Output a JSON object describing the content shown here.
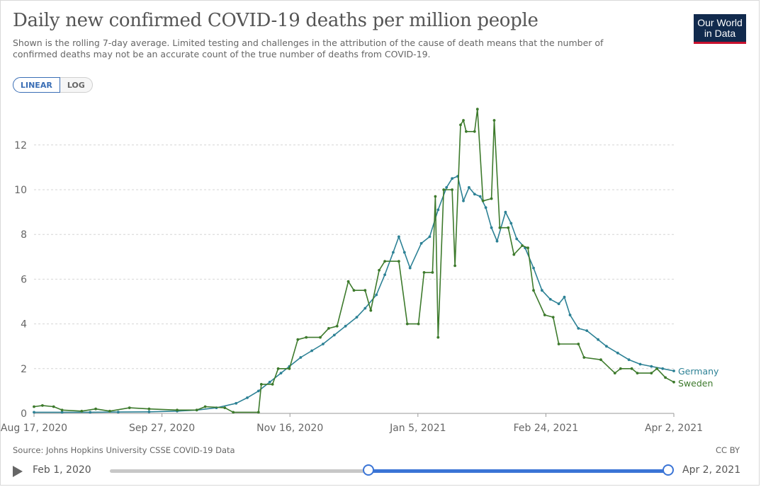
{
  "header": {
    "title": "Daily new confirmed COVID-19 deaths per million people",
    "subtitle": "Shown is the rolling 7-day average. Limited testing and challenges in the attribution of the cause of death means that the number of confirmed deaths may not be an accurate count of the true number of deaths from COVID-19.",
    "logo_line1": "Our World",
    "logo_line2": "in Data"
  },
  "scale_toggle": {
    "linear": "LINEAR",
    "log": "LOG",
    "selected": "LINEAR"
  },
  "footer": {
    "source": "Source: Johns Hopkins University CSSE COVID-19 Data",
    "license": "CC BY"
  },
  "timeline": {
    "start_label": "Feb 1, 2020",
    "end_label": "Apr 2, 2021"
  },
  "chart_data": {
    "type": "line",
    "x_ticks": [
      "Aug 17, 2020",
      "Sep 27, 2020",
      "Nov 16, 2020",
      "Jan 5, 2021",
      "Feb 24, 2021",
      "Apr 2, 2021"
    ],
    "y_ticks": [
      "0",
      "2",
      "4",
      "6",
      "8",
      "10",
      "12"
    ],
    "ylim": [
      0,
      13.7
    ],
    "x_domain": [
      "2020-08-17",
      "2021-04-02"
    ],
    "grid": "horizontal dotted",
    "series": [
      {
        "name": "Germany",
        "color": "#2c8195",
        "points": [
          [
            "2020-08-17",
            0.05
          ],
          [
            "2020-08-27",
            0.05
          ],
          [
            "2020-09-06",
            0.05
          ],
          [
            "2020-09-16",
            0.06
          ],
          [
            "2020-09-27",
            0.07
          ],
          [
            "2020-10-07",
            0.1
          ],
          [
            "2020-10-14",
            0.15
          ],
          [
            "2020-10-21",
            0.25
          ],
          [
            "2020-10-28",
            0.45
          ],
          [
            "2020-11-01",
            0.7
          ],
          [
            "2020-11-05",
            1.0
          ],
          [
            "2020-11-09",
            1.4
          ],
          [
            "2020-11-13",
            1.8
          ],
          [
            "2020-11-16",
            2.1
          ],
          [
            "2020-11-20",
            2.5
          ],
          [
            "2020-11-24",
            2.8
          ],
          [
            "2020-11-28",
            3.1
          ],
          [
            "2020-12-02",
            3.5
          ],
          [
            "2020-12-06",
            3.9
          ],
          [
            "2020-12-10",
            4.3
          ],
          [
            "2020-12-13",
            4.7
          ],
          [
            "2020-12-17",
            5.3
          ],
          [
            "2020-12-20",
            6.2
          ],
          [
            "2020-12-23",
            7.2
          ],
          [
            "2020-12-25",
            7.9
          ],
          [
            "2020-12-27",
            7.2
          ],
          [
            "2020-12-29",
            6.5
          ],
          [
            "2021-01-02",
            7.6
          ],
          [
            "2021-01-05",
            7.9
          ],
          [
            "2021-01-08",
            9.1
          ],
          [
            "2021-01-11",
            10.1
          ],
          [
            "2021-01-13",
            10.5
          ],
          [
            "2021-01-15",
            10.6
          ],
          [
            "2021-01-17",
            9.5
          ],
          [
            "2021-01-19",
            10.1
          ],
          [
            "2021-01-21",
            9.8
          ],
          [
            "2021-01-23",
            9.7
          ],
          [
            "2021-01-25",
            9.2
          ],
          [
            "2021-01-27",
            8.3
          ],
          [
            "2021-01-29",
            7.7
          ],
          [
            "2021-02-01",
            9.0
          ],
          [
            "2021-02-03",
            8.5
          ],
          [
            "2021-02-05",
            7.8
          ],
          [
            "2021-02-08",
            7.4
          ],
          [
            "2021-02-11",
            6.5
          ],
          [
            "2021-02-14",
            5.5
          ],
          [
            "2021-02-17",
            5.1
          ],
          [
            "2021-02-20",
            4.9
          ],
          [
            "2021-02-22",
            5.2
          ],
          [
            "2021-02-24",
            4.4
          ],
          [
            "2021-02-27",
            3.8
          ],
          [
            "2021-03-02",
            3.7
          ],
          [
            "2021-03-06",
            3.3
          ],
          [
            "2021-03-09",
            3.0
          ],
          [
            "2021-03-13",
            2.7
          ],
          [
            "2021-03-17",
            2.4
          ],
          [
            "2021-03-21",
            2.2
          ],
          [
            "2021-03-25",
            2.1
          ],
          [
            "2021-03-29",
            2.0
          ],
          [
            "2021-04-02",
            1.9
          ]
        ]
      },
      {
        "name": "Sweden",
        "color": "#3d7a2c",
        "points": [
          [
            "2020-08-17",
            0.3
          ],
          [
            "2020-08-20",
            0.35
          ],
          [
            "2020-08-24",
            0.3
          ],
          [
            "2020-08-27",
            0.15
          ],
          [
            "2020-09-03",
            0.1
          ],
          [
            "2020-09-08",
            0.2
          ],
          [
            "2020-09-13",
            0.1
          ],
          [
            "2020-09-20",
            0.25
          ],
          [
            "2020-09-27",
            0.2
          ],
          [
            "2020-10-07",
            0.15
          ],
          [
            "2020-10-14",
            0.15
          ],
          [
            "2020-10-17",
            0.3
          ],
          [
            "2020-10-24",
            0.25
          ],
          [
            "2020-10-27",
            0.05
          ],
          [
            "2020-11-05",
            0.05
          ],
          [
            "2020-11-06",
            1.3
          ],
          [
            "2020-11-10",
            1.3
          ],
          [
            "2020-11-12",
            2.0
          ],
          [
            "2020-11-16",
            2.0
          ],
          [
            "2020-11-19",
            3.3
          ],
          [
            "2020-11-22",
            3.4
          ],
          [
            "2020-11-27",
            3.4
          ],
          [
            "2020-11-30",
            3.8
          ],
          [
            "2020-12-03",
            3.9
          ],
          [
            "2020-12-07",
            5.9
          ],
          [
            "2020-12-09",
            5.5
          ],
          [
            "2020-12-13",
            5.5
          ],
          [
            "2020-12-15",
            4.6
          ],
          [
            "2020-12-18",
            6.4
          ],
          [
            "2020-12-20",
            6.8
          ],
          [
            "2020-12-25",
            6.8
          ],
          [
            "2020-12-28",
            4.0
          ],
          [
            "2021-01-01",
            4.0
          ],
          [
            "2021-01-03",
            6.3
          ],
          [
            "2021-01-06",
            6.3
          ],
          [
            "2021-01-07",
            9.7
          ],
          [
            "2021-01-08",
            3.4
          ],
          [
            "2021-01-10",
            10.0
          ],
          [
            "2021-01-13",
            10.0
          ],
          [
            "2021-01-14",
            6.6
          ],
          [
            "2021-01-16",
            12.9
          ],
          [
            "2021-01-17",
            13.1
          ],
          [
            "2021-01-18",
            12.6
          ],
          [
            "2021-01-21",
            12.6
          ],
          [
            "2021-01-22",
            13.6
          ],
          [
            "2021-01-24",
            9.5
          ],
          [
            "2021-01-27",
            9.6
          ],
          [
            "2021-01-28",
            13.1
          ],
          [
            "2021-01-30",
            8.3
          ],
          [
            "2021-02-02",
            8.3
          ],
          [
            "2021-02-04",
            7.1
          ],
          [
            "2021-02-07",
            7.5
          ],
          [
            "2021-02-09",
            7.4
          ],
          [
            "2021-02-11",
            5.5
          ],
          [
            "2021-02-15",
            4.4
          ],
          [
            "2021-02-18",
            4.3
          ],
          [
            "2021-02-20",
            3.1
          ],
          [
            "2021-02-27",
            3.1
          ],
          [
            "2021-03-01",
            2.5
          ],
          [
            "2021-03-07",
            2.4
          ],
          [
            "2021-03-12",
            1.8
          ],
          [
            "2021-03-14",
            2.0
          ],
          [
            "2021-03-18",
            2.0
          ],
          [
            "2021-03-20",
            1.8
          ],
          [
            "2021-03-25",
            1.8
          ],
          [
            "2021-03-27",
            2.0
          ],
          [
            "2021-03-30",
            1.6
          ],
          [
            "2021-04-02",
            1.4
          ]
        ]
      }
    ]
  }
}
